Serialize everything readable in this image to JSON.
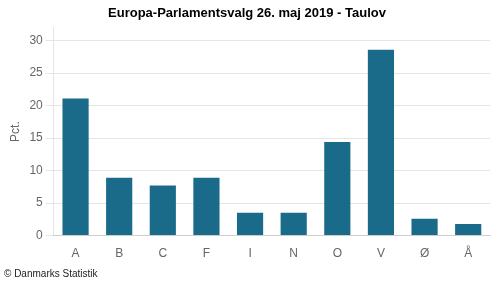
{
  "chart_data": {
    "type": "bar",
    "title": "Europa-Parlamentsvalg 26. maj 2019 - Taulov",
    "ylabel": "Pct.",
    "footer": "© Danmarks Statistik",
    "categories": [
      "A",
      "B",
      "C",
      "F",
      "I",
      "N",
      "O",
      "V",
      "Ø",
      "Å"
    ],
    "values": [
      21.1,
      8.9,
      7.7,
      8.9,
      3.5,
      3.5,
      14.4,
      28.6,
      2.6,
      1.8
    ],
    "color": "#1a6b8a",
    "ylim": [
      0,
      32
    ],
    "yticks": [
      0,
      5,
      10,
      15,
      20,
      25,
      30
    ],
    "grid": true
  }
}
